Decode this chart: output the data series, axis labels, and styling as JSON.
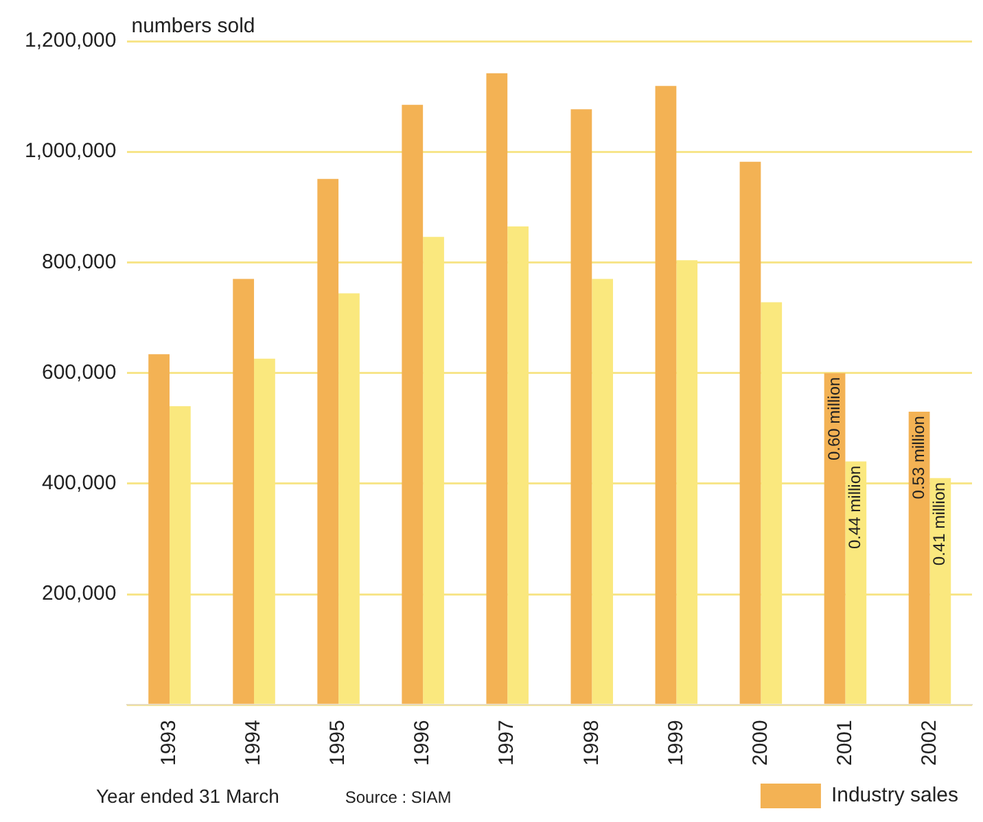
{
  "chart_data": {
    "type": "bar",
    "ylabel": "numbers sold",
    "categories": [
      "1993",
      "1994",
      "1995",
      "1996",
      "1997",
      "1998",
      "1999",
      "2000",
      "2001",
      "2002"
    ],
    "series": [
      {
        "name": "Industry sales",
        "color": "#f3b254",
        "values": [
          634000,
          770000,
          951000,
          1085000,
          1142000,
          1077000,
          1119000,
          982000,
          600000,
          530000
        ],
        "value_labels": [
          null,
          null,
          null,
          null,
          null,
          null,
          null,
          null,
          "0.60 million",
          "0.53 million"
        ]
      },
      {
        "color": "#fae87e",
        "values": [
          540000,
          626000,
          744000,
          846000,
          865000,
          770000,
          804000,
          728000,
          440000,
          410000
        ],
        "value_labels": [
          null,
          null,
          null,
          null,
          null,
          null,
          null,
          null,
          "0.44 million",
          "0.41 million"
        ]
      }
    ],
    "ylim": [
      0,
      1200000
    ],
    "yticks": [
      {
        "value": 0,
        "label": null
      },
      {
        "value": 200000,
        "label": "200,000"
      },
      {
        "value": 400000,
        "label": "400,000"
      },
      {
        "value": 600000,
        "label": "600,000"
      },
      {
        "value": 800000,
        "label": "800,000"
      },
      {
        "value": 1000000,
        "label": "1,000,000"
      },
      {
        "value": 1200000,
        "label": "1,200,000"
      }
    ],
    "grid": "y",
    "legend": "bottom right",
    "annotations": [
      "Year ended 31 March",
      "Source : SIAM"
    ]
  }
}
